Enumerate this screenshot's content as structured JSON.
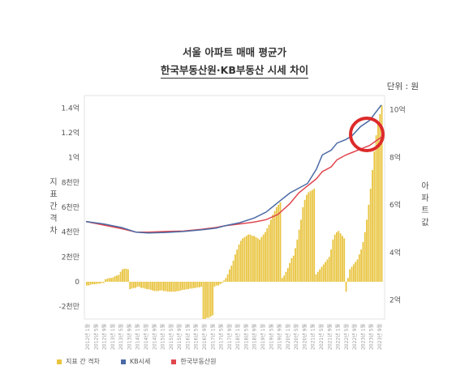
{
  "title": "서울 아파트 매매 평균가",
  "subtitle": "한국부동산원·KB부동산 시세 차이",
  "unit_label": "단위 : 원",
  "colors": {
    "bars": "#e9c440",
    "kb": "#4a6aa5",
    "reb": "#e0464f",
    "highlight": "#dd2a2a"
  },
  "chart_data": {
    "type": "bar+line",
    "left_axis": {
      "label": "지표 간 격차",
      "ticks": [
        "1.4억",
        "1.2억",
        "1억",
        "8천만",
        "6천만",
        "4천만",
        "2천만",
        "0",
        "-2천만"
      ],
      "values": [
        140000000,
        120000000,
        100000000,
        80000000,
        60000000,
        40000000,
        20000000,
        0,
        -20000000
      ],
      "range": [
        -30000000,
        150000000
      ]
    },
    "right_axis": {
      "label": "아파트 값",
      "ticks": [
        "10억",
        "8억",
        "6억",
        "4억",
        "2억"
      ],
      "values": [
        10,
        8,
        6,
        4,
        2
      ],
      "unit": "억",
      "range": [
        1.2,
        10.6
      ]
    },
    "x_ticks": [
      "2012년 1월",
      "2012년 5월",
      "2012년 9월",
      "2013년 1월",
      "2013년 5월",
      "2013년 9월",
      "2014년 1월",
      "2014년 5월",
      "2014년 9월",
      "2015년 1월",
      "2015년 5월",
      "2015년 9월",
      "2016년 1월",
      "2016년 5월",
      "2016년 9월",
      "2017년 1월",
      "2017년 5월",
      "2017년 9월",
      "2018년 1월",
      "2018년 5월",
      "2018년 9월",
      "2019년 1월",
      "2019년 5월",
      "2019년 9월",
      "2020년 1월",
      "2020년 5월",
      "2020년 9월",
      "2021년 1월",
      "2021년 5월",
      "2021년 9월",
      "2022년 1월",
      "2022년 5월",
      "2022년 9월",
      "2023년 1월",
      "2023년 5월",
      "2023년 9월"
    ],
    "gap_bars": [
      -3000000,
      -3000000,
      -2500000,
      -2000000,
      -2000000,
      -2000000,
      -1500000,
      -1500000,
      -1000000,
      -1000000,
      2000000,
      2500000,
      3000000,
      3000000,
      3500000,
      4500000,
      5000000,
      5500000,
      8000000,
      10000000,
      10500000,
      10500000,
      10000000,
      -6000000,
      -5500000,
      -5000000,
      -5000000,
      -4000000,
      -4000000,
      -5000000,
      -5000000,
      -5500000,
      -6000000,
      -6000000,
      -6500000,
      -7000000,
      -7500000,
      -7500000,
      -7500000,
      -7000000,
      -7000000,
      -7500000,
      -7500000,
      -8000000,
      -8000000,
      -8000000,
      -8000000,
      -8000000,
      -7500000,
      -7500000,
      -7000000,
      -6500000,
      -6500000,
      -6000000,
      -6000000,
      -5500000,
      -5500000,
      -5000000,
      -5000000,
      -4500000,
      -4500000,
      -4000000,
      -30000000,
      -30000000,
      -29000000,
      -29000000,
      -28000000,
      -27000000,
      -4000000,
      -3000000,
      -3000000,
      -2000000,
      -1000000,
      1000000,
      3000000,
      6000000,
      10000000,
      13000000,
      17000000,
      22000000,
      26000000,
      30000000,
      33000000,
      35000000,
      36000000,
      37000000,
      38000000,
      38000000,
      37000000,
      37000000,
      36000000,
      35000000,
      34000000,
      36000000,
      38000000,
      40000000,
      43000000,
      46000000,
      50000000,
      54000000,
      57000000,
      60000000,
      62000000,
      64000000,
      3000000,
      5000000,
      8000000,
      11000000,
      15000000,
      19000000,
      21000000,
      27000000,
      34000000,
      42000000,
      50000000,
      60000000,
      66000000,
      70000000,
      72000000,
      73000000,
      74000000,
      75000000,
      6000000,
      8000000,
      10000000,
      12000000,
      14000000,
      16000000,
      18000000,
      20000000,
      26000000,
      34000000,
      38000000,
      40000000,
      41000000,
      39000000,
      37000000,
      35000000,
      -8000000,
      3000000,
      10000000,
      12000000,
      14000000,
      16000000,
      18000000,
      22000000,
      26000000,
      32000000,
      40000000,
      50000000,
      62000000,
      75000000,
      90000000,
      105000000,
      118000000,
      128000000,
      135000000,
      142000000
    ],
    "kb_series": [
      [
        0,
        5.3
      ],
      [
        0.06,
        5.2
      ],
      [
        0.12,
        5.05
      ],
      [
        0.17,
        4.85
      ],
      [
        0.21,
        4.82
      ],
      [
        0.27,
        4.84
      ],
      [
        0.33,
        4.88
      ],
      [
        0.39,
        4.95
      ],
      [
        0.44,
        5.02
      ],
      [
        0.47,
        5.12
      ],
      [
        0.52,
        5.25
      ],
      [
        0.57,
        5.45
      ],
      [
        0.61,
        5.7
      ],
      [
        0.65,
        6.1
      ],
      [
        0.69,
        6.5
      ],
      [
        0.72,
        6.7
      ],
      [
        0.75,
        6.9
      ],
      [
        0.78,
        7.5
      ],
      [
        0.8,
        8.1
      ],
      [
        0.83,
        8.3
      ],
      [
        0.85,
        8.6
      ],
      [
        0.88,
        8.75
      ],
      [
        0.9,
        8.9
      ],
      [
        0.93,
        9.3
      ],
      [
        0.96,
        9.55
      ],
      [
        1.0,
        10.2
      ]
    ],
    "reb_series": [
      [
        0,
        5.3
      ],
      [
        0.06,
        5.15
      ],
      [
        0.12,
        5.0
      ],
      [
        0.17,
        4.85
      ],
      [
        0.21,
        4.85
      ],
      [
        0.27,
        4.88
      ],
      [
        0.33,
        4.9
      ],
      [
        0.39,
        4.97
      ],
      [
        0.44,
        5.05
      ],
      [
        0.47,
        5.12
      ],
      [
        0.52,
        5.2
      ],
      [
        0.57,
        5.28
      ],
      [
        0.61,
        5.38
      ],
      [
        0.65,
        5.6
      ],
      [
        0.69,
        6.05
      ],
      [
        0.72,
        6.5
      ],
      [
        0.75,
        6.8
      ],
      [
        0.78,
        7.1
      ],
      [
        0.8,
        7.4
      ],
      [
        0.83,
        7.6
      ],
      [
        0.85,
        7.9
      ],
      [
        0.88,
        8.1
      ],
      [
        0.9,
        8.2
      ],
      [
        0.93,
        8.35
      ],
      [
        0.96,
        8.5
      ],
      [
        1.0,
        8.85
      ]
    ],
    "legend": [
      "지표 간 격차",
      "KB시세",
      "한국부동산원"
    ]
  }
}
